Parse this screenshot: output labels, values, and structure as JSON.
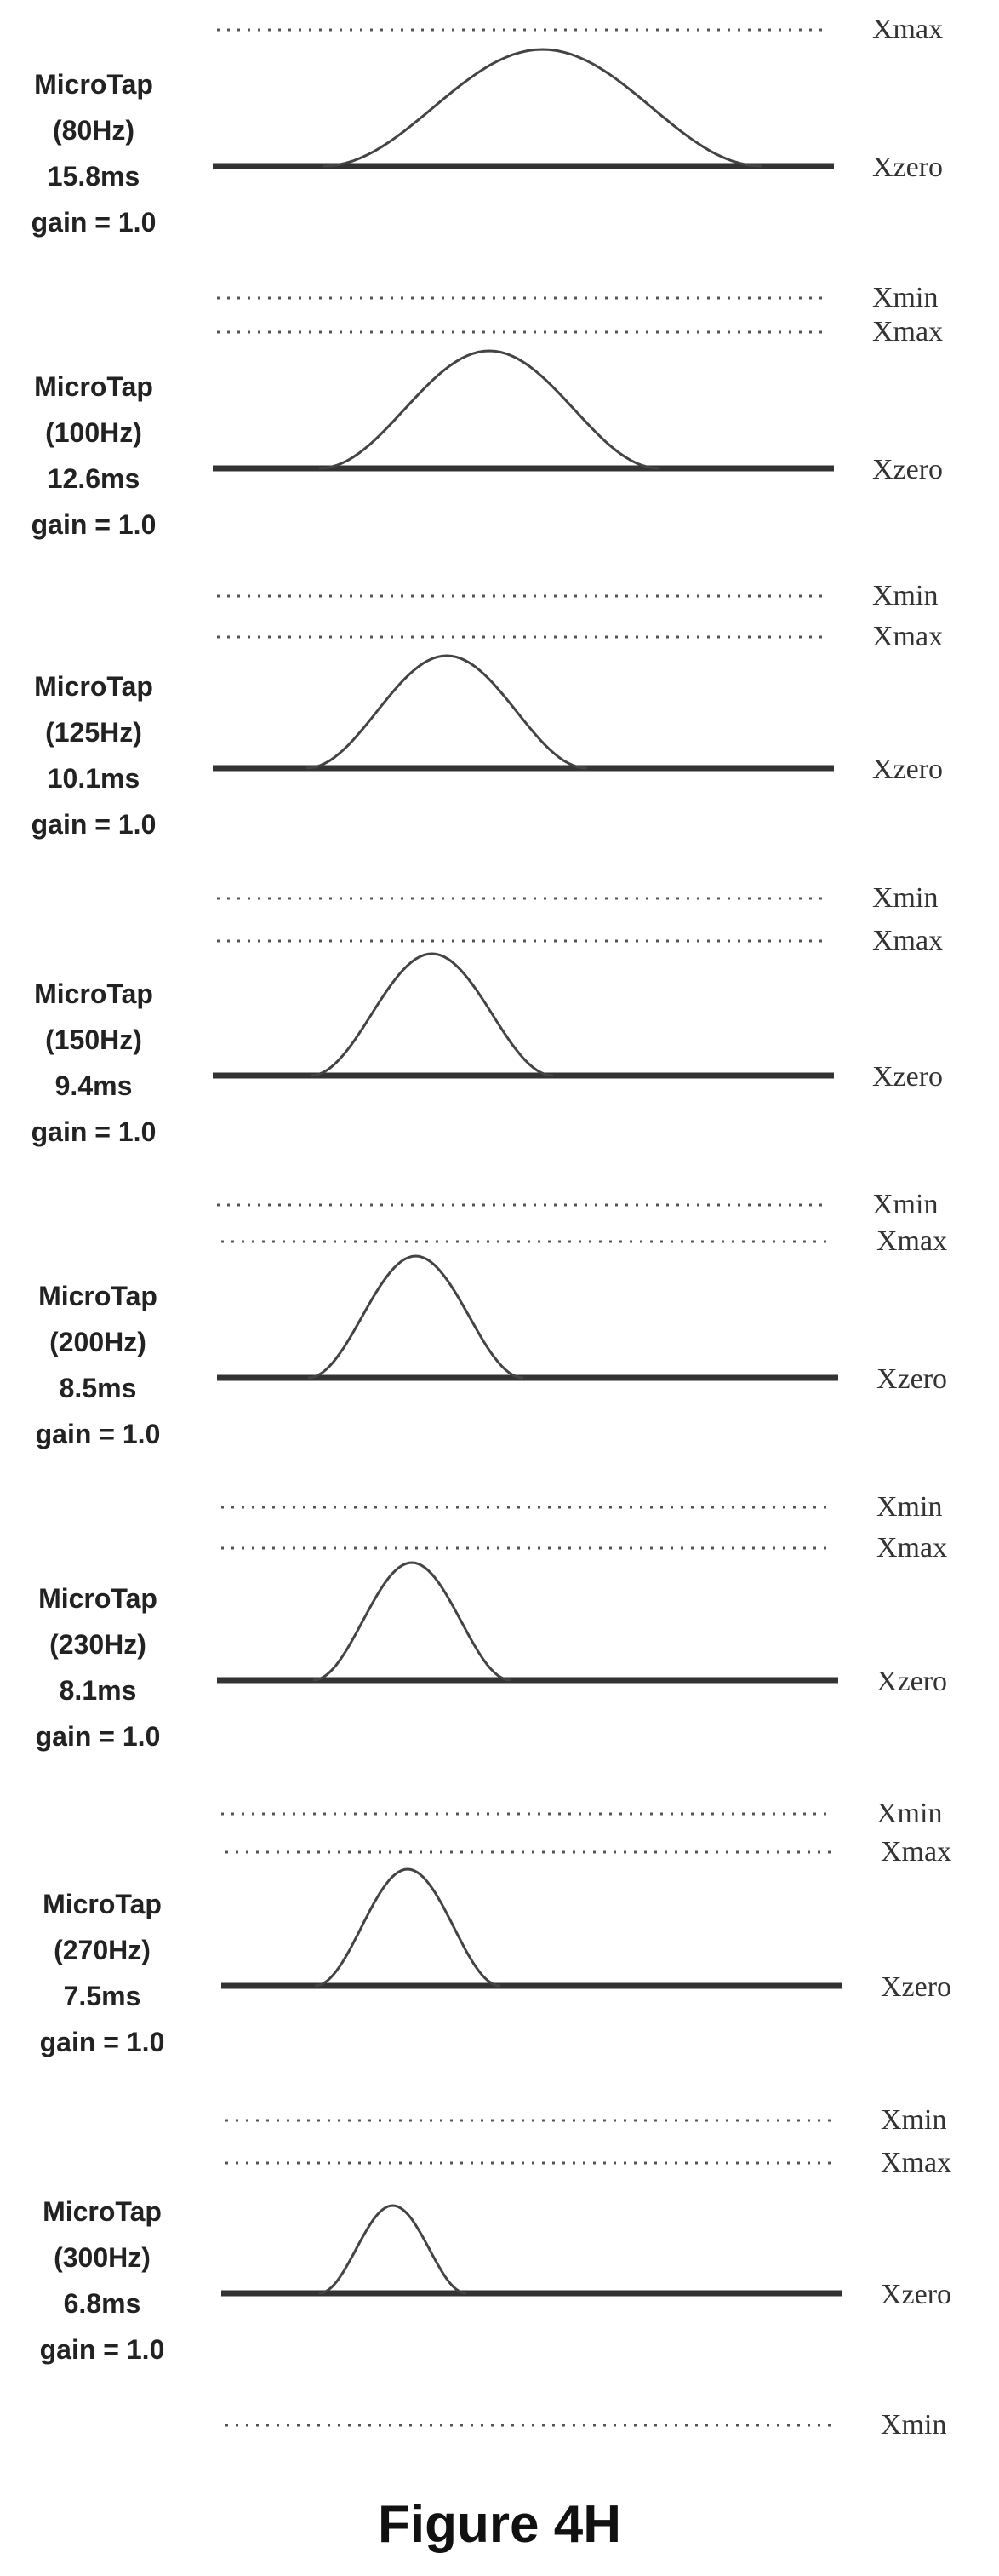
{
  "figure": {
    "caption": "Figure 4H",
    "level_labels": {
      "max": "Xmax",
      "zero": "Xzero",
      "min": "Xmin"
    },
    "panels": [
      {
        "name": "MicroTap",
        "freq": "(80Hz)",
        "duration": "15.8ms",
        "gain": "gain = 1.0"
      },
      {
        "name": "MicroTap",
        "freq": "(100Hz)",
        "duration": "12.6ms",
        "gain": "gain = 1.0"
      },
      {
        "name": "MicroTap",
        "freq": "(125Hz)",
        "duration": "10.1ms",
        "gain": "gain = 1.0"
      },
      {
        "name": "MicroTap",
        "freq": "(150Hz)",
        "duration": "9.4ms",
        "gain": "gain = 1.0"
      },
      {
        "name": "MicroTap",
        "freq": "(200Hz)",
        "duration": "8.5ms",
        "gain": "gain = 1.0"
      },
      {
        "name": "MicroTap",
        "freq": "(230Hz)",
        "duration": "8.1ms",
        "gain": "gain = 1.0"
      },
      {
        "name": "MicroTap",
        "freq": "(270Hz)",
        "duration": "7.5ms",
        "gain": "gain = 1.0"
      },
      {
        "name": "MicroTap",
        "freq": "(300Hz)",
        "duration": "6.8ms",
        "gain": "gain = 1.0"
      }
    ]
  }
}
